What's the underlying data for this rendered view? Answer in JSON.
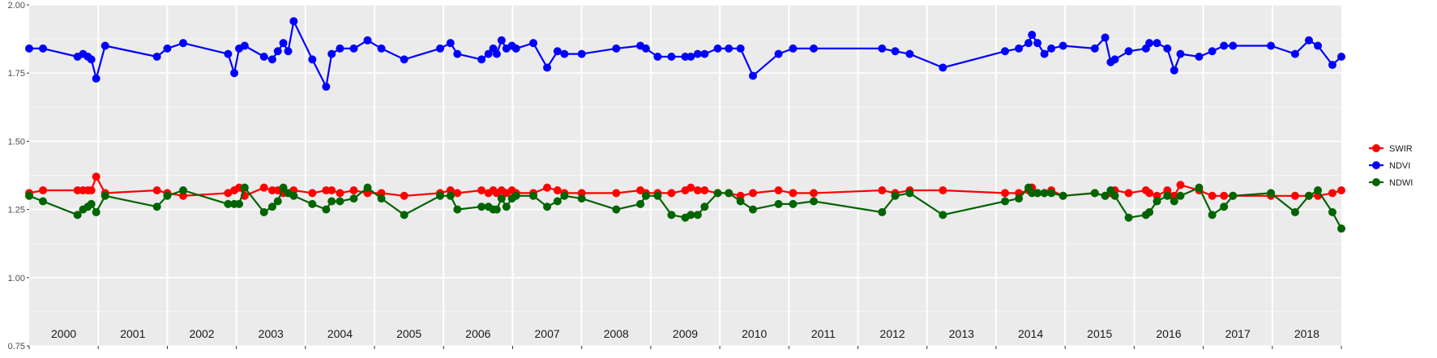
{
  "chart_data": {
    "type": "line",
    "title": "",
    "xlabel": "",
    "ylabel": "",
    "ylim": [
      0.75,
      2.0
    ],
    "yticks": [
      "0.75",
      "1.00",
      "1.25",
      "1.50",
      "1.75",
      "2.00"
    ],
    "xlim": [
      2000.0,
      2019.0
    ],
    "year_labels": [
      "2000",
      "2001",
      "2002",
      "2003",
      "2004",
      "2005",
      "2006",
      "2007",
      "2008",
      "2009",
      "2010",
      "2011",
      "2012",
      "2013",
      "2014",
      "2015",
      "2016",
      "2017",
      "2018"
    ],
    "grid": true,
    "legend_position": "right",
    "series": [
      {
        "name": "SWIR",
        "color": "#ff0000",
        "x": [
          2000.0,
          2000.2,
          2000.7,
          2000.78,
          2000.85,
          2000.9,
          2000.97,
          2001.1,
          2001.85,
          2002.0,
          2002.23,
          2002.88,
          2002.97,
          2003.04,
          2003.12,
          2003.4,
          2003.52,
          2003.6,
          2003.68,
          2003.75,
          2003.83,
          2004.1,
          2004.3,
          2004.38,
          2004.5,
          2004.7,
          2004.9,
          2005.1,
          2005.43,
          2005.95,
          2006.1,
          2006.2,
          2006.55,
          2006.65,
          2006.72,
          2006.77,
          2006.84,
          2006.91,
          2006.99,
          2007.05,
          2007.3,
          2007.5,
          2007.65,
          2007.75,
          2008.0,
          2008.5,
          2008.85,
          2008.93,
          2009.1,
          2009.3,
          2009.5,
          2009.58,
          2009.68,
          2009.78,
          2009.97,
          2010.13,
          2010.3,
          2010.48,
          2010.85,
          2011.06,
          2011.36,
          2012.35,
          2012.54,
          2012.75,
          2013.23,
          2014.13,
          2014.33,
          2014.47,
          2014.52,
          2014.6,
          2014.7,
          2014.8,
          2014.97,
          2015.43,
          2015.58,
          2015.66,
          2015.72,
          2015.92,
          2016.17,
          2016.22,
          2016.33,
          2016.48,
          2016.58,
          2016.67,
          2016.94,
          2017.13,
          2017.3,
          2017.43,
          2017.98,
          2018.33,
          2018.53,
          2018.66,
          2018.87,
          2019.0
        ],
        "y": [
          1.31,
          1.32,
          1.32,
          1.32,
          1.32,
          1.32,
          1.37,
          1.31,
          1.32,
          1.31,
          1.3,
          1.31,
          1.32,
          1.33,
          1.3,
          1.33,
          1.32,
          1.32,
          1.31,
          1.31,
          1.32,
          1.31,
          1.32,
          1.32,
          1.31,
          1.32,
          1.31,
          1.31,
          1.3,
          1.31,
          1.32,
          1.31,
          1.32,
          1.31,
          1.32,
          1.31,
          1.32,
          1.31,
          1.32,
          1.31,
          1.31,
          1.33,
          1.32,
          1.31,
          1.31,
          1.31,
          1.32,
          1.31,
          1.31,
          1.31,
          1.32,
          1.33,
          1.32,
          1.32,
          1.31,
          1.31,
          1.3,
          1.31,
          1.32,
          1.31,
          1.31,
          1.32,
          1.31,
          1.32,
          1.32,
          1.31,
          1.31,
          1.32,
          1.33,
          1.31,
          1.31,
          1.32,
          1.3,
          1.31,
          1.3,
          1.31,
          1.32,
          1.31,
          1.32,
          1.31,
          1.3,
          1.32,
          1.3,
          1.34,
          1.32,
          1.3,
          1.3,
          1.3,
          1.3,
          1.3,
          1.3,
          1.3,
          1.31,
          1.32
        ]
      },
      {
        "name": "NDVI",
        "color": "#0000ff",
        "x": [
          2000.0,
          2000.2,
          2000.7,
          2000.78,
          2000.85,
          2000.9,
          2000.97,
          2001.1,
          2001.85,
          2002.0,
          2002.23,
          2002.88,
          2002.97,
          2003.04,
          2003.12,
          2003.4,
          2003.52,
          2003.6,
          2003.68,
          2003.75,
          2003.83,
          2004.1,
          2004.3,
          2004.38,
          2004.5,
          2004.7,
          2004.9,
          2005.1,
          2005.43,
          2005.95,
          2006.1,
          2006.2,
          2006.55,
          2006.65,
          2006.72,
          2006.77,
          2006.84,
          2006.91,
          2006.99,
          2007.05,
          2007.3,
          2007.5,
          2007.65,
          2007.75,
          2008.0,
          2008.5,
          2008.85,
          2008.93,
          2009.1,
          2009.3,
          2009.5,
          2009.58,
          2009.68,
          2009.78,
          2009.97,
          2010.13,
          2010.3,
          2010.48,
          2010.85,
          2011.06,
          2011.36,
          2012.35,
          2012.54,
          2012.75,
          2013.23,
          2014.13,
          2014.33,
          2014.47,
          2014.52,
          2014.6,
          2014.7,
          2014.8,
          2014.97,
          2015.43,
          2015.58,
          2015.66,
          2015.72,
          2015.92,
          2016.17,
          2016.22,
          2016.33,
          2016.48,
          2016.58,
          2016.67,
          2016.94,
          2017.13,
          2017.3,
          2017.43,
          2017.98,
          2018.33,
          2018.53,
          2018.66,
          2018.87,
          2019.0
        ],
        "y": [
          1.84,
          1.84,
          1.81,
          1.82,
          1.81,
          1.8,
          1.73,
          1.85,
          1.81,
          1.84,
          1.86,
          1.82,
          1.75,
          1.84,
          1.85,
          1.81,
          1.8,
          1.83,
          1.86,
          1.83,
          1.94,
          1.8,
          1.7,
          1.82,
          1.84,
          1.84,
          1.87,
          1.84,
          1.8,
          1.84,
          1.86,
          1.82,
          1.8,
          1.82,
          1.84,
          1.82,
          1.87,
          1.84,
          1.85,
          1.84,
          1.86,
          1.77,
          1.83,
          1.82,
          1.82,
          1.84,
          1.85,
          1.84,
          1.81,
          1.81,
          1.81,
          1.81,
          1.82,
          1.82,
          1.84,
          1.84,
          1.84,
          1.74,
          1.82,
          1.84,
          1.84,
          1.84,
          1.83,
          1.82,
          1.77,
          1.83,
          1.84,
          1.86,
          1.89,
          1.86,
          1.82,
          1.84,
          1.85,
          1.84,
          1.88,
          1.79,
          1.8,
          1.83,
          1.84,
          1.86,
          1.86,
          1.84,
          1.76,
          1.82,
          1.81,
          1.83,
          1.85,
          1.85,
          1.85,
          1.82,
          1.87,
          1.85,
          1.78,
          1.81
        ]
      },
      {
        "name": "NDWI",
        "color": "#006400",
        "x": [
          2000.0,
          2000.2,
          2000.7,
          2000.78,
          2000.85,
          2000.9,
          2000.97,
          2001.1,
          2001.85,
          2002.0,
          2002.23,
          2002.88,
          2002.97,
          2003.04,
          2003.12,
          2003.4,
          2003.52,
          2003.6,
          2003.68,
          2003.75,
          2003.83,
          2004.1,
          2004.3,
          2004.38,
          2004.5,
          2004.7,
          2004.9,
          2005.1,
          2005.43,
          2005.95,
          2006.1,
          2006.2,
          2006.55,
          2006.65,
          2006.72,
          2006.77,
          2006.84,
          2006.91,
          2006.99,
          2007.05,
          2007.3,
          2007.5,
          2007.65,
          2007.75,
          2008.0,
          2008.5,
          2008.85,
          2008.93,
          2009.1,
          2009.3,
          2009.5,
          2009.58,
          2009.68,
          2009.78,
          2009.97,
          2010.13,
          2010.3,
          2010.48,
          2010.85,
          2011.06,
          2011.36,
          2012.35,
          2012.54,
          2012.75,
          2013.23,
          2014.13,
          2014.33,
          2014.47,
          2014.52,
          2014.6,
          2014.7,
          2014.8,
          2014.97,
          2015.43,
          2015.58,
          2015.66,
          2015.72,
          2015.92,
          2016.17,
          2016.22,
          2016.33,
          2016.48,
          2016.58,
          2016.67,
          2016.94,
          2017.13,
          2017.3,
          2017.43,
          2017.98,
          2018.33,
          2018.53,
          2018.66,
          2018.87,
          2019.0
        ],
        "y": [
          1.3,
          1.28,
          1.23,
          1.25,
          1.26,
          1.27,
          1.24,
          1.3,
          1.26,
          1.3,
          1.32,
          1.27,
          1.27,
          1.27,
          1.33,
          1.24,
          1.26,
          1.28,
          1.33,
          1.31,
          1.3,
          1.27,
          1.25,
          1.28,
          1.28,
          1.29,
          1.33,
          1.29,
          1.23,
          1.3,
          1.3,
          1.25,
          1.26,
          1.26,
          1.25,
          1.25,
          1.29,
          1.26,
          1.29,
          1.3,
          1.3,
          1.26,
          1.28,
          1.3,
          1.29,
          1.25,
          1.27,
          1.3,
          1.3,
          1.23,
          1.22,
          1.23,
          1.23,
          1.26,
          1.31,
          1.31,
          1.28,
          1.25,
          1.27,
          1.27,
          1.28,
          1.24,
          1.3,
          1.31,
          1.23,
          1.28,
          1.29,
          1.33,
          1.31,
          1.31,
          1.31,
          1.31,
          1.3,
          1.31,
          1.3,
          1.32,
          1.3,
          1.22,
          1.23,
          1.24,
          1.28,
          1.3,
          1.28,
          1.3,
          1.33,
          1.23,
          1.26,
          1.3,
          1.31,
          1.24,
          1.3,
          1.32,
          1.24,
          1.18
        ]
      }
    ]
  }
}
